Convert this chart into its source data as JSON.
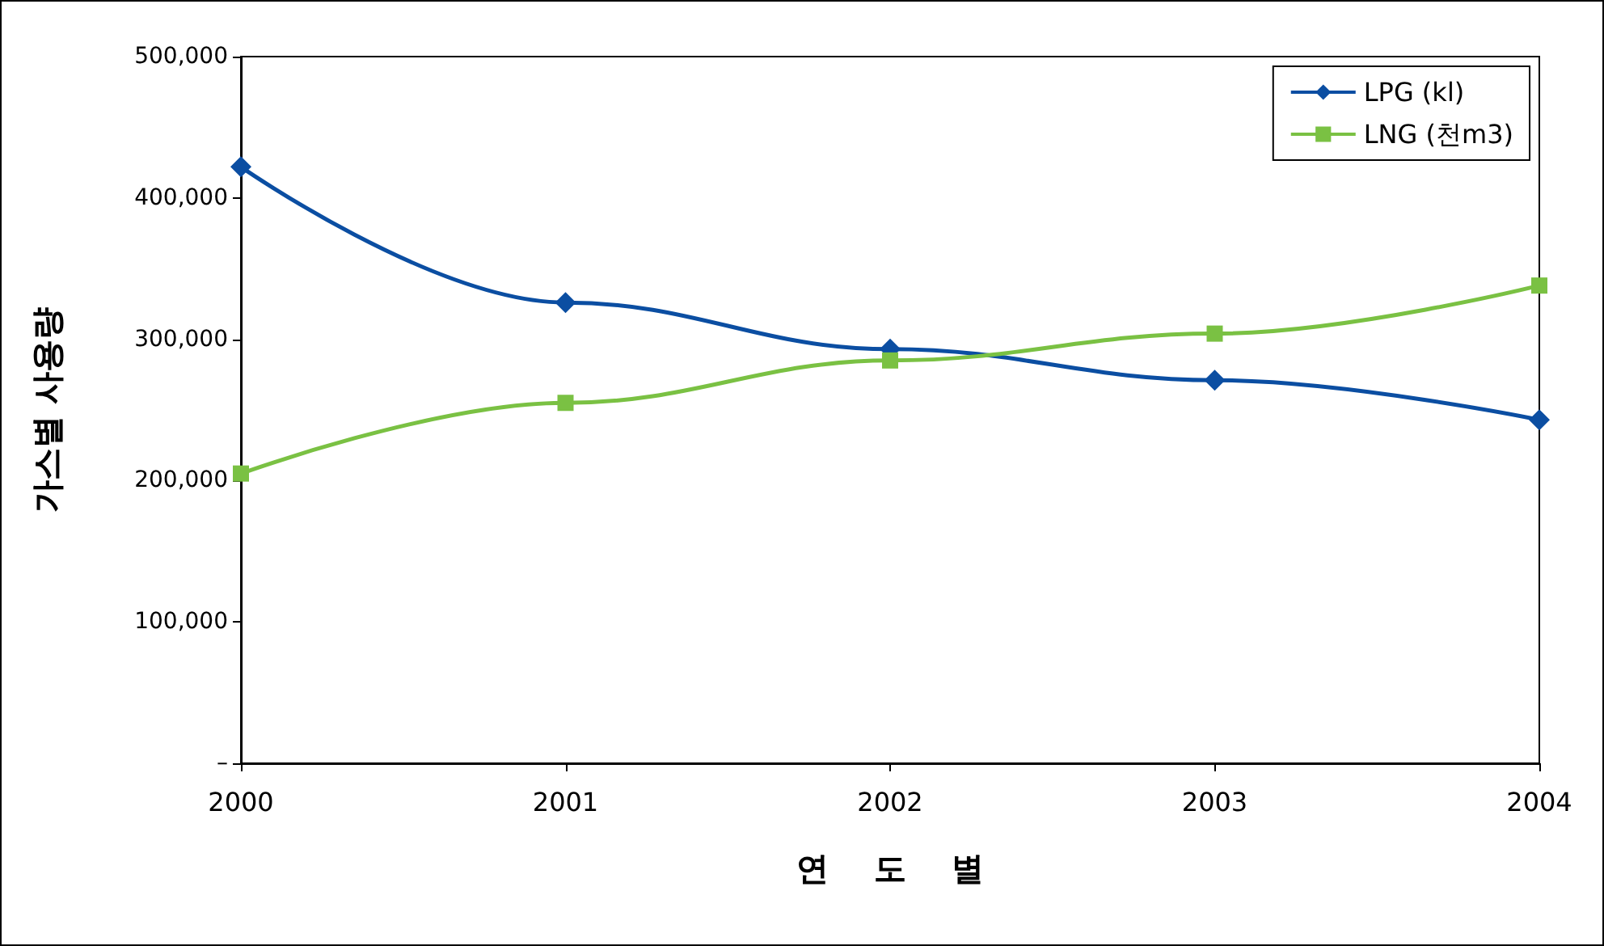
{
  "chart_data": {
    "type": "line",
    "xlabel": "연    도    별",
    "ylabel": "가스별 사용량",
    "categories": [
      "2000",
      "2001",
      "2002",
      "2003",
      "2004"
    ],
    "series": [
      {
        "name": "LPG (kl)",
        "color": "#0b4ea2",
        "marker": "diamond",
        "values": [
          422000,
          326000,
          293000,
          271000,
          243000
        ]
      },
      {
        "name": "LNG (천m3)",
        "color": "#7ac143",
        "marker": "square",
        "values": [
          205000,
          255000,
          285000,
          304000,
          338000
        ]
      }
    ],
    "ylim": [
      0,
      500000
    ],
    "yticks": [
      {
        "value": 0,
        "label": "–"
      },
      {
        "value": 100000,
        "label": "100,000"
      },
      {
        "value": 200000,
        "label": "200,000"
      },
      {
        "value": 300000,
        "label": "300,000"
      },
      {
        "value": 400000,
        "label": "400,000"
      },
      {
        "value": 500000,
        "label": "500,000"
      }
    ],
    "grid": false,
    "legend": "top right"
  }
}
